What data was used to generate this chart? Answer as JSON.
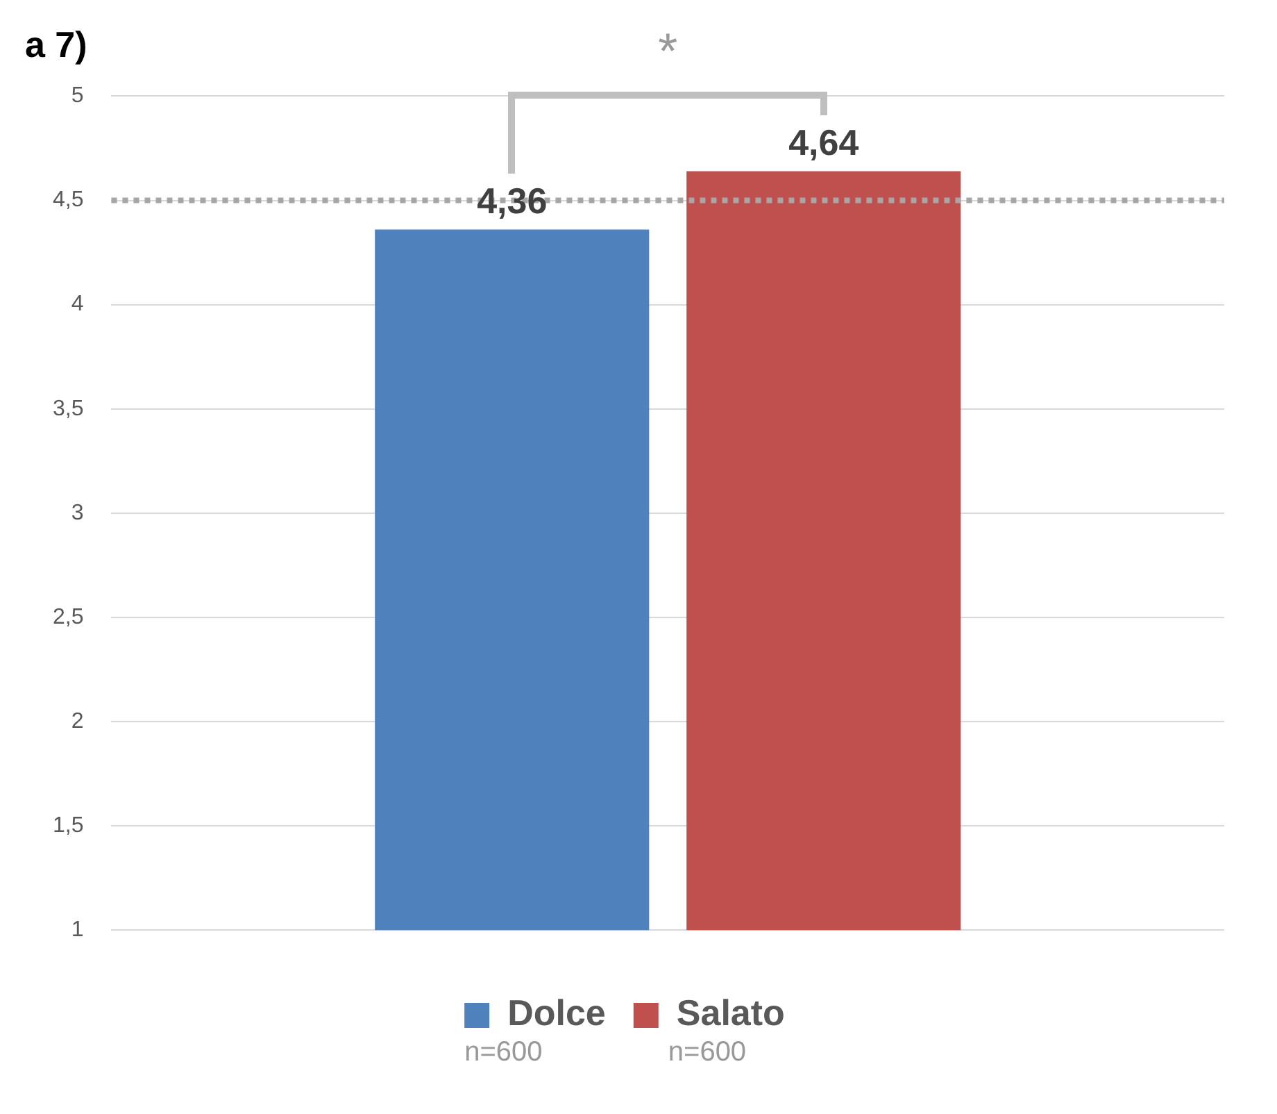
{
  "chart_data": {
    "type": "bar",
    "title": "a 7)",
    "categories": [
      null
    ],
    "series": [
      {
        "name": "Dolce",
        "color": "#4f81bd",
        "values": [
          4.36
        ],
        "value_labels": [
          "4,36"
        ]
      },
      {
        "name": "Salato",
        "color": "#c0504d",
        "values": [
          4.64
        ],
        "value_labels": [
          "4,64"
        ]
      }
    ],
    "ylim": [
      1,
      5
    ],
    "yticks": [
      1,
      {
        "value": 1.5,
        "label": "1,5"
      },
      2,
      {
        "value": 2.5,
        "label": "2,5"
      },
      3,
      {
        "value": 3.5,
        "label": "3,5"
      },
      4,
      {
        "value": 4.5,
        "label": "4,5"
      },
      5
    ],
    "grid": "y",
    "legend": "bottom",
    "ref_lines": [
      {
        "axis": "y",
        "value": 4.5,
        "color": "#a6a6a6",
        "line_style": "dotted"
      }
    ],
    "annotations": [
      "*",
      "n=600",
      "n=600"
    ]
  }
}
